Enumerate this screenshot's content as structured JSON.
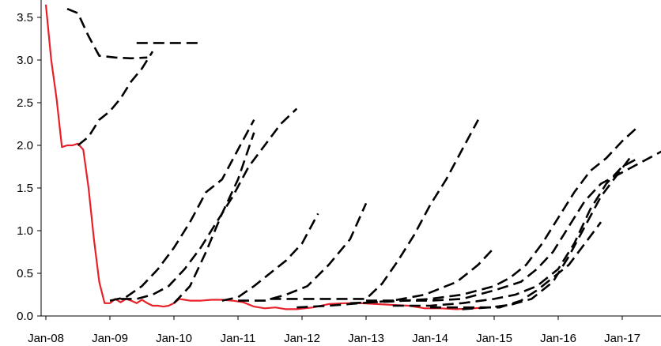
{
  "chart_data": {
    "type": "line",
    "title": "",
    "xlabel": "",
    "ylabel": "",
    "x_tick_labels": [
      "Jan-08",
      "Jan-09",
      "Jan-10",
      "Jan-11",
      "Jan-12",
      "Jan-13",
      "Jan-14",
      "Jan-15",
      "Jan-16",
      "Jan-17"
    ],
    "y_tick_labels": [
      "0.0",
      "0.5",
      "1.0",
      "1.5",
      "2.0",
      "2.5",
      "3.0",
      "3.5"
    ],
    "xlim": [
      "2008-01",
      "2017-12"
    ],
    "ylim": [
      0,
      3.65
    ],
    "grid": false,
    "legend": "none",
    "colors": {
      "actual": "#e8202a",
      "forward": "#000000",
      "axis": "#000000"
    },
    "series": [
      {
        "style": "solid",
        "color": "#e8202a",
        "x": [
          "2008-01",
          "2008-02",
          "2008-03",
          "2008-04",
          "2008-05",
          "2008-06",
          "2008-07",
          "2008-08",
          "2008-09",
          "2008-10",
          "2008-11",
          "2008-12",
          "2009-01",
          "2009-02",
          "2009-03",
          "2009-04",
          "2009-05",
          "2009-06",
          "2009-07",
          "2009-08",
          "2009-09",
          "2009-10",
          "2009-11",
          "2009-12",
          "2010-01",
          "2010-02",
          "2010-03",
          "2010-04",
          "2010-06",
          "2010-08",
          "2010-10",
          "2010-12",
          "2011-02",
          "2011-04",
          "2011-06",
          "2011-08",
          "2011-10",
          "2011-12",
          "2012-03",
          "2012-06",
          "2012-09",
          "2012-12",
          "2013-03",
          "2013-06",
          "2013-09",
          "2013-12",
          "2014-03",
          "2014-06",
          "2014-09",
          "2014-12"
        ],
        "y": [
          3.65,
          3.0,
          2.55,
          1.98,
          2.0,
          2.0,
          2.02,
          1.95,
          1.5,
          0.9,
          0.4,
          0.15,
          0.15,
          0.2,
          0.16,
          0.2,
          0.18,
          0.15,
          0.19,
          0.15,
          0.12,
          0.12,
          0.11,
          0.12,
          0.15,
          0.2,
          0.19,
          0.18,
          0.18,
          0.19,
          0.19,
          0.18,
          0.16,
          0.11,
          0.09,
          0.1,
          0.08,
          0.08,
          0.1,
          0.14,
          0.15,
          0.15,
          0.14,
          0.13,
          0.12,
          0.09,
          0.09,
          0.08,
          0.09,
          0.1
        ]
      },
      {
        "style": "dashed",
        "color": "#000000",
        "x": [
          "2008-05",
          "2008-07",
          "2008-09",
          "2008-11",
          "2009-02",
          "2009-05",
          "2009-08"
        ],
        "y": [
          3.6,
          3.55,
          3.28,
          3.05,
          3.03,
          3.02,
          3.03
        ]
      },
      {
        "style": "dashed",
        "color": "#000000",
        "x": [
          "2009-06",
          "2010-01",
          "2010-06"
        ],
        "y": [
          3.2,
          3.2,
          3.2
        ]
      },
      {
        "style": "dashed",
        "color": "#000000",
        "x": [
          "2008-07",
          "2008-09",
          "2008-11",
          "2009-01",
          "2009-03",
          "2009-05",
          "2009-07",
          "2009-09"
        ],
        "y": [
          2.0,
          2.1,
          2.3,
          2.4,
          2.55,
          2.75,
          2.9,
          3.1
        ]
      },
      {
        "style": "dashed",
        "color": "#000000",
        "x": [
          "2009-01",
          "2009-04",
          "2009-07",
          "2009-10",
          "2010-01",
          "2010-04",
          "2010-07",
          "2010-10",
          "2011-01",
          "2011-04"
        ],
        "y": [
          0.18,
          0.22,
          0.35,
          0.55,
          0.8,
          1.1,
          1.45,
          1.6,
          1.95,
          2.3
        ]
      },
      {
        "style": "dashed",
        "color": "#000000",
        "x": [
          "2009-03",
          "2009-06",
          "2009-09",
          "2009-12",
          "2010-03",
          "2010-06",
          "2010-09",
          "2010-12",
          "2011-03",
          "2011-06",
          "2011-09",
          "2011-12"
        ],
        "y": [
          0.2,
          0.2,
          0.25,
          0.35,
          0.55,
          0.8,
          1.1,
          1.4,
          1.75,
          2.0,
          2.25,
          2.43
        ]
      },
      {
        "style": "dashed",
        "color": "#000000",
        "x": [
          "2010-01",
          "2010-04",
          "2010-07",
          "2010-10",
          "2011-01",
          "2011-04"
        ],
        "y": [
          0.15,
          0.35,
          0.75,
          1.2,
          1.6,
          2.15
        ]
      },
      {
        "style": "dashed",
        "color": "#000000",
        "x": [
          "2010-10",
          "2011-01",
          "2011-04",
          "2011-07",
          "2011-10",
          "2012-01",
          "2012-04"
        ],
        "y": [
          0.18,
          0.22,
          0.35,
          0.5,
          0.65,
          0.85,
          1.2
        ]
      },
      {
        "style": "dashed",
        "color": "#000000",
        "x": [
          "2011-01",
          "2011-06",
          "2011-10",
          "2012-02",
          "2012-06",
          "2012-10",
          "2013-01"
        ],
        "y": [
          0.18,
          0.18,
          0.25,
          0.35,
          0.6,
          0.9,
          1.32
        ]
      },
      {
        "style": "dashed",
        "color": "#000000",
        "x": [
          "2011-07",
          "2012-01",
          "2012-07",
          "2013-01",
          "2013-04",
          "2013-07",
          "2013-10",
          "2014-01",
          "2014-04",
          "2014-07",
          "2014-10"
        ],
        "y": [
          0.2,
          0.2,
          0.2,
          0.2,
          0.38,
          0.65,
          0.95,
          1.3,
          1.6,
          1.95,
          2.3
        ]
      },
      {
        "style": "dashed",
        "color": "#000000",
        "x": [
          "2011-12",
          "2012-06",
          "2012-12",
          "2013-06",
          "2013-12",
          "2014-06",
          "2014-10",
          "2015-01"
        ],
        "y": [
          0.1,
          0.12,
          0.15,
          0.18,
          0.25,
          0.4,
          0.6,
          0.8
        ]
      },
      {
        "style": "dashed",
        "color": "#000000",
        "x": [
          "2012-10",
          "2013-06",
          "2014-01",
          "2014-07",
          "2015-01",
          "2015-04",
          "2015-07",
          "2015-10",
          "2016-01",
          "2016-04",
          "2016-07",
          "2016-10",
          "2017-01",
          "2017-04"
        ],
        "y": [
          0.15,
          0.17,
          0.2,
          0.25,
          0.35,
          0.45,
          0.6,
          0.85,
          1.15,
          1.45,
          1.7,
          1.85,
          2.05,
          2.22
        ]
      },
      {
        "style": "dashed",
        "color": "#000000",
        "x": [
          "2013-01",
          "2013-07",
          "2014-01",
          "2014-07",
          "2015-01",
          "2015-06",
          "2015-09",
          "2015-12",
          "2016-03",
          "2016-06",
          "2016-09",
          "2016-12",
          "2017-03",
          "2017-06",
          "2017-09",
          "2017-12"
        ],
        "y": [
          0.18,
          0.18,
          0.18,
          0.2,
          0.3,
          0.4,
          0.55,
          0.75,
          1.05,
          1.35,
          1.55,
          1.65,
          1.75,
          1.85,
          1.95,
          2.05
        ]
      },
      {
        "style": "dashed",
        "color": "#000000",
        "x": [
          "2013-06",
          "2014-01",
          "2014-07",
          "2015-01",
          "2015-05",
          "2015-09",
          "2016-01",
          "2016-04",
          "2016-07",
          "2016-10",
          "2017-01",
          "2017-04"
        ],
        "y": [
          0.12,
          0.12,
          0.15,
          0.2,
          0.25,
          0.35,
          0.55,
          0.85,
          1.25,
          1.55,
          1.75,
          1.85
        ]
      },
      {
        "style": "dashed",
        "color": "#000000",
        "x": [
          "2014-07",
          "2014-12",
          "2015-04",
          "2015-08",
          "2015-12",
          "2016-03",
          "2016-06",
          "2016-09",
          "2016-12",
          "2017-03"
        ],
        "y": [
          0.08,
          0.1,
          0.13,
          0.2,
          0.4,
          0.7,
          1.05,
          1.4,
          1.65,
          1.9
        ]
      },
      {
        "style": "dashed",
        "color": "#000000",
        "x": [
          "2014-01",
          "2014-08",
          "2015-02",
          "2015-06",
          "2015-09",
          "2015-12",
          "2016-03",
          "2016-06",
          "2016-09"
        ],
        "y": [
          0.1,
          0.1,
          0.1,
          0.18,
          0.3,
          0.45,
          0.6,
          0.85,
          1.1
        ]
      }
    ]
  }
}
